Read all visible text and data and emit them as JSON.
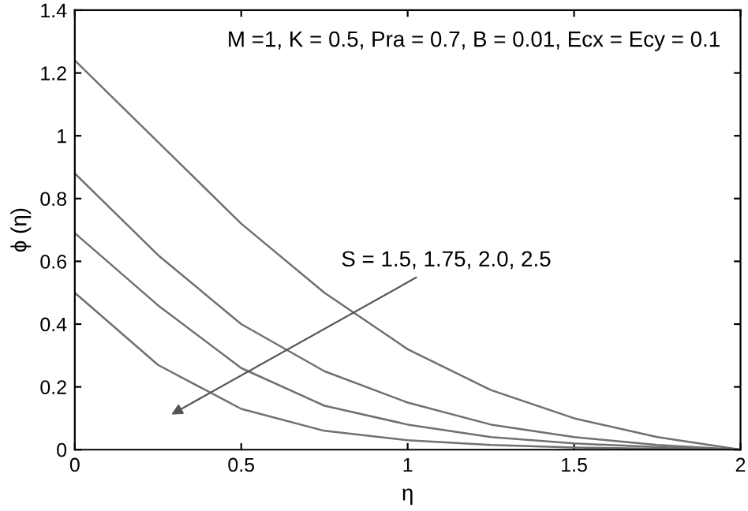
{
  "chart_data": {
    "type": "line",
    "xlabel": "η",
    "ylabel": "ϕ (η)",
    "x": [
      0,
      0.25,
      0.5,
      0.75,
      1,
      1.25,
      1.5,
      1.75,
      2
    ],
    "series": [
      {
        "color": "#707070",
        "values": [
          1.24,
          0.98,
          0.72,
          0.5,
          0.32,
          0.19,
          0.1,
          0.04,
          0
        ]
      },
      {
        "color": "#707070",
        "values": [
          0.88,
          0.62,
          0.4,
          0.25,
          0.15,
          0.08,
          0.04,
          0.015,
          0
        ]
      },
      {
        "color": "#707070",
        "values": [
          0.69,
          0.46,
          0.26,
          0.14,
          0.08,
          0.04,
          0.02,
          0.008,
          0
        ]
      },
      {
        "color": "#707070",
        "values": [
          0.5,
          0.27,
          0.13,
          0.06,
          0.03,
          0.015,
          0.007,
          0.003,
          0
        ]
      }
    ],
    "annotations": [
      "M =1, K = 0.5, Pra = 0.7, B = 0.01, Ecx = Ecy = 0.1",
      "S = 1.5, 1.75, 2.0, 2.5"
    ],
    "xlim": [
      0,
      2
    ],
    "ylim": [
      0,
      1.4
    ],
    "xticks": [
      0,
      0.5,
      1,
      1.5,
      2
    ],
    "yticks": [
      0,
      0.2,
      0.4,
      0.6,
      0.8,
      1,
      1.2,
      1.4
    ],
    "grid": false,
    "legend": false,
    "marker": "none",
    "line_style": "solid"
  }
}
